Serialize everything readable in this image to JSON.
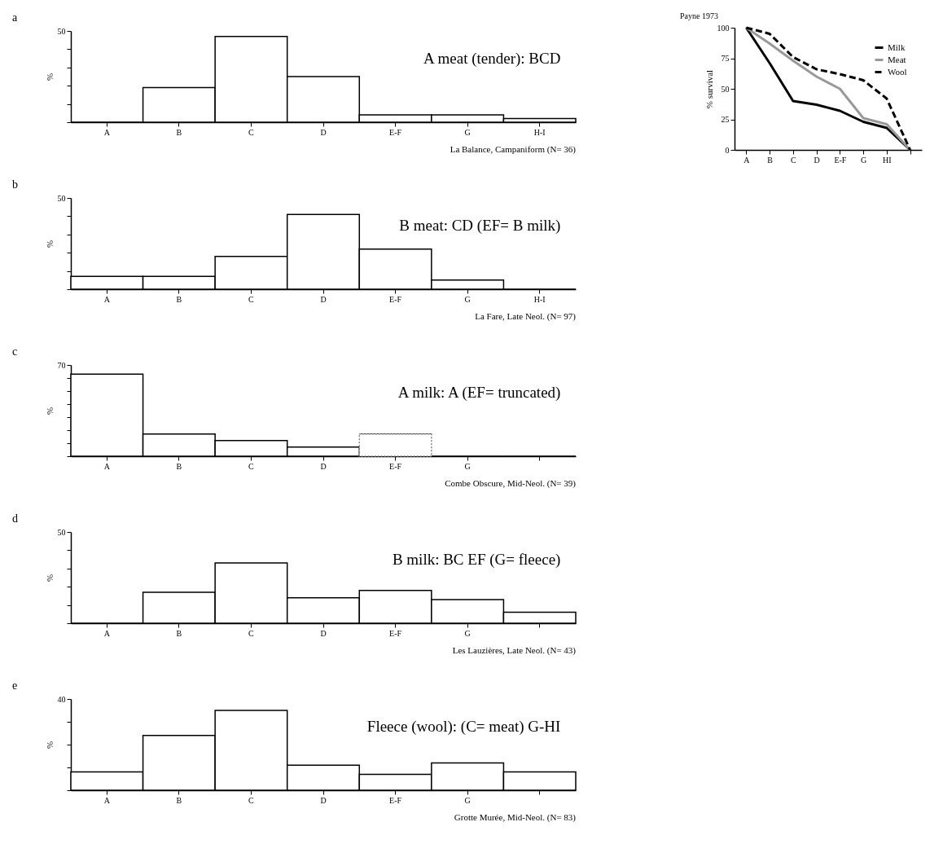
{
  "chart_data": [
    {
      "type": "bar",
      "title": "a",
      "ylabel": "%",
      "categories": [
        "A",
        "B",
        "C",
        "D",
        "E-F",
        "G",
        "H-I"
      ],
      "values": [
        0,
        19,
        47,
        25,
        4,
        4,
        2
      ],
      "color": "#000000",
      "ylim": [
        0,
        50
      ],
      "yticks": [
        {
          "value": 0,
          "label": null
        },
        {
          "value": 10,
          "label": null
        },
        {
          "value": 20,
          "label": null
        },
        {
          "value": 30,
          "label": null
        },
        {
          "value": 40,
          "label": null
        },
        50
      ],
      "annotations": [
        "A meat (tender): BCD",
        "La Balance, Campaniform (N= 36)"
      ]
    },
    {
      "type": "bar",
      "title": "b",
      "ylabel": "%",
      "categories": [
        "A",
        "B",
        "C",
        "D",
        "E-F",
        "G",
        "H-I"
      ],
      "values": [
        7,
        7,
        18,
        41,
        22,
        5,
        0
      ],
      "color": "#000000",
      "ylim": [
        0,
        50
      ],
      "yticks": [
        {
          "value": 0,
          "label": null
        },
        {
          "value": 10,
          "label": null
        },
        {
          "value": 20,
          "label": null
        },
        {
          "value": 30,
          "label": null
        },
        {
          "value": 40,
          "label": null
        },
        50
      ],
      "annotations": [
        "B meat: CD (EF= B milk)",
        "La Fare, Late Neol. (N= 97)"
      ]
    },
    {
      "type": "bar",
      "title": "c",
      "ylabel": "%",
      "categories": [
        "A",
        "B",
        "C",
        "D",
        "E-F",
        "G",
        null
      ],
      "series": [
        {
          "color": "#000000",
          "values": [
            63,
            17,
            12,
            7,
            0,
            0,
            0
          ]
        },
        {
          "color": "#808080",
          "line_style": "dotted",
          "values": [
            null,
            null,
            null,
            null,
            17,
            null,
            null
          ]
        }
      ],
      "ylim": [
        0,
        70
      ],
      "yticks": [
        {
          "value": 0,
          "label": null
        },
        {
          "value": 10,
          "label": null
        },
        {
          "value": 20,
          "label": null
        },
        {
          "value": 30,
          "label": null
        },
        {
          "value": 40,
          "label": null
        },
        {
          "value": 50,
          "label": null
        },
        {
          "value": 60,
          "label": null
        },
        70
      ],
      "annotations": [
        "A milk: A (EF= truncated)",
        "Combe Obscure, Mid-Neol. (N= 39)"
      ]
    },
    {
      "type": "bar",
      "title": "d",
      "ylabel": "%",
      "categories": [
        "A",
        "B",
        "C",
        "D",
        "E-F",
        "G",
        null
      ],
      "values": [
        0,
        17,
        33,
        14,
        18,
        13,
        6
      ],
      "color": "#000000",
      "ylim": [
        0,
        50
      ],
      "yticks": [
        {
          "value": 0,
          "label": null
        },
        {
          "value": 10,
          "label": null
        },
        {
          "value": 20,
          "label": null
        },
        {
          "value": 30,
          "label": null
        },
        {
          "value": 40,
          "label": null
        },
        50
      ],
      "annotations": [
        "B milk: BC EF (G= fleece)",
        "Les Lauzières, Late Neol. (N= 43)"
      ]
    },
    {
      "type": "bar",
      "title": "e",
      "ylabel": "%",
      "categories": [
        "A",
        "B",
        "C",
        "D",
        "E-F",
        "G",
        null
      ],
      "values": [
        8,
        24,
        35,
        11,
        7,
        12,
        8
      ],
      "color": "#000000",
      "ylim": [
        0,
        40
      ],
      "yticks": [
        {
          "value": 0,
          "label": null
        },
        {
          "value": 10,
          "label": null
        },
        {
          "value": 20,
          "label": null
        },
        {
          "value": 30,
          "label": null
        },
        40
      ],
      "annotations": [
        "Fleece (wool): (C= meat) G-HI",
        "Grotte Murée, Mid-Neol. (N= 83)"
      ]
    },
    {
      "type": "line",
      "title": "Payne 1973",
      "ylabel": "% survival",
      "categories": [
        "A",
        "B",
        "C",
        "D",
        "E-F",
        "G",
        "HI",
        null
      ],
      "series": [
        {
          "name": "Milk",
          "color": "#000000",
          "line_style": "solid",
          "values": [
            100,
            71,
            40,
            37,
            32,
            23,
            18,
            0
          ]
        },
        {
          "name": "Meat",
          "color": "#999999",
          "line_style": "solid",
          "values": [
            100,
            87,
            73,
            60,
            50,
            26,
            21,
            0
          ]
        },
        {
          "name": "Wool",
          "color": "#000000",
          "line_style": "dashed",
          "values": [
            100,
            95,
            76,
            66,
            62,
            57,
            42,
            0
          ]
        }
      ],
      "ylim": [
        0,
        100
      ],
      "yticks": [
        0,
        25,
        50,
        75,
        100
      ],
      "legend": "top right",
      "marker": "none",
      "grid": false
    }
  ]
}
